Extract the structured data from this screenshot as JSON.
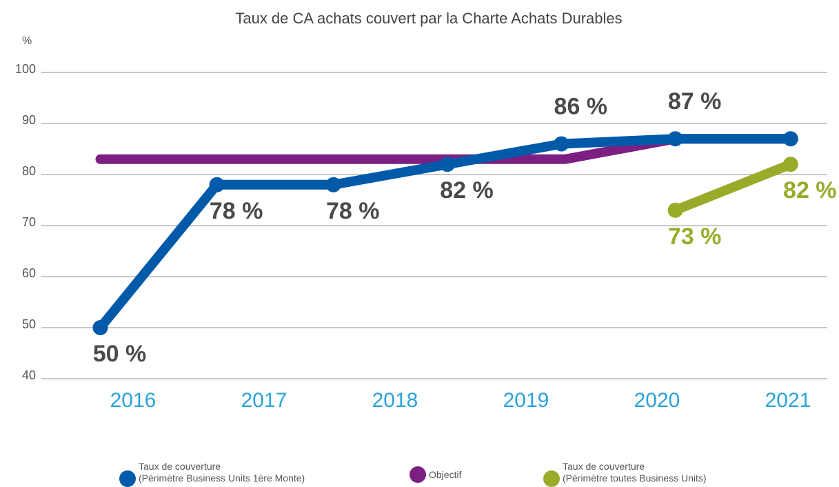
{
  "chart_data": {
    "type": "line",
    "title": "Taux de CA achats couvert par la Charte Achats Durables",
    "ylabel": "%",
    "xlim": [
      2015.3,
      2021.3
    ],
    "xticks": [
      2016,
      2017,
      2018,
      2019,
      2020,
      2021
    ],
    "ylim": [
      40,
      100
    ],
    "yticks": [
      40,
      50,
      60,
      70,
      80,
      90,
      100
    ],
    "grid": true,
    "series": [
      {
        "name": "Taux de couverture\n(Périmètre Business Units 1ère Monte)",
        "color": "#005aa9",
        "label_color": "#4a4a4a",
        "x": [
          2015.75,
          2016.64,
          2017.53,
          2018.4,
          2019.27,
          2020.14,
          2021.02
        ],
        "values": [
          50,
          78,
          78,
          82,
          86,
          87,
          87
        ],
        "value_labels": [
          "50 %",
          "78 %",
          "78 %",
          "82 %",
          "86 %",
          "87 %",
          null
        ]
      },
      {
        "name": "Objectif",
        "color": "#7b1f82",
        "x": [
          2015.75,
          2019.3,
          2020.14,
          2021.02
        ],
        "values": [
          83,
          83,
          87,
          87
        ]
      },
      {
        "name": "Taux de couverture\n(Périmètre toutes Business Units)",
        "color": "#9aab2a",
        "label_color": "#9aab2a",
        "x": [
          2020.14,
          2021.02
        ],
        "values": [
          73,
          82
        ],
        "value_labels": [
          "73 %",
          "82 %"
        ]
      }
    ]
  }
}
